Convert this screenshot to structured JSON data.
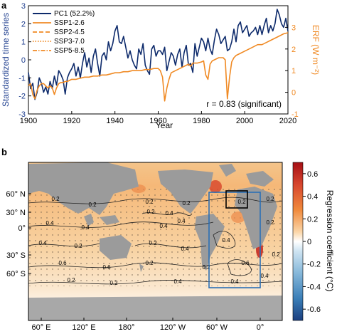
{
  "chart_data": [
    {
      "type": "line",
      "panel_label": "a",
      "xlabel": "Year",
      "ylabel_left": "Standardized time series",
      "ylabel_right": "ERF (W m⁻²)",
      "xlim": [
        1900,
        2020
      ],
      "ylim_left": [
        -3,
        3
      ],
      "ylim_right": [
        -1,
        4
      ],
      "x_ticks": [
        "1900",
        "1920",
        "1940",
        "1960",
        "1980",
        "2000",
        "2020"
      ],
      "y_ticks_left": [
        "3",
        "2",
        "1",
        "0",
        "-1",
        "-2",
        "-3"
      ],
      "y_ticks_right": [
        "3",
        "2",
        "1",
        "0",
        "-1"
      ],
      "legend": [
        "PC1 (52.2%)",
        "SSP1-2.6",
        "SSP2-4.5",
        "SSP3-7.0",
        "SSP5-8.5"
      ],
      "legend_position": "top-left",
      "annotation": "r = 0.83 (significant)",
      "colors": {
        "pc1": "#0d2a6b",
        "erf": "#f08a24",
        "right_axis": "#f08a24",
        "left_axis": "#1f3f8f"
      },
      "series": [
        {
          "name": "PC1 (52.2%)",
          "axis": "left",
          "x": [
            1900,
            1901,
            1902,
            1903,
            1904,
            1905,
            1906,
            1907,
            1908,
            1909,
            1910,
            1911,
            1912,
            1913,
            1914,
            1915,
            1916,
            1917,
            1918,
            1919,
            1920,
            1921,
            1922,
            1923,
            1924,
            1925,
            1926,
            1927,
            1928,
            1929,
            1930,
            1931,
            1932,
            1933,
            1934,
            1935,
            1936,
            1937,
            1938,
            1939,
            1940,
            1941,
            1942,
            1943,
            1944,
            1945,
            1946,
            1947,
            1948,
            1949,
            1950,
            1951,
            1952,
            1953,
            1954,
            1955,
            1956,
            1957,
            1958,
            1959,
            1960,
            1961,
            1962,
            1963,
            1964,
            1965,
            1966,
            1967,
            1968,
            1969,
            1970,
            1971,
            1972,
            1973,
            1974,
            1975,
            1976,
            1977,
            1978,
            1979,
            1980,
            1981,
            1982,
            1983,
            1984,
            1985,
            1986,
            1987,
            1988,
            1989,
            1990,
            1991,
            1992,
            1993,
            1994,
            1995,
            1996,
            1997,
            1998,
            1999,
            2000,
            2001,
            2002,
            2003,
            2004,
            2005,
            2006,
            2007,
            2008,
            2009,
            2010,
            2011,
            2012,
            2013,
            2014,
            2015,
            2016,
            2017,
            2018,
            2019,
            2020
          ],
          "y": [
            -0.7,
            -1.6,
            -1.3,
            -2.2,
            -1.8,
            -1.0,
            -1.3,
            -1.8,
            -1.5,
            -1.9,
            -1.2,
            -1.6,
            -0.9,
            -1.4,
            -0.6,
            -0.8,
            -1.1,
            -1.9,
            -1.0,
            -0.7,
            -0.5,
            -0.2,
            -0.9,
            -0.4,
            -1.0,
            -0.2,
            0.4,
            -0.4,
            0.1,
            -0.7,
            0.2,
            0.6,
            -0.2,
            -0.9,
            0.2,
            0.4,
            0.0,
            1.0,
            0.5,
            0.9,
            1.6,
            1.9,
            1.0,
            0.9,
            1.3,
            0.7,
            0.1,
            0.5,
            0.0,
            -0.3,
            -0.5,
            0.6,
            0.3,
            0.9,
            -0.3,
            -0.6,
            -0.8,
            0.6,
            0.8,
            0.2,
            0.5,
            0.5,
            0.3,
            0.7,
            -0.6,
            -0.1,
            0.4,
            0.2,
            -0.3,
            0.3,
            0.6,
            -0.4,
            0.4,
            0.8,
            -0.3,
            -0.2,
            -0.7,
            0.9,
            0.2,
            0.7,
            1.2,
            1.0,
            0.5,
            1.2,
            0.6,
            0.3,
            1.1,
            1.7,
            1.4,
            0.9,
            1.1,
            1.3,
            0.5,
            0.6,
            1.0,
            1.7,
            1.0,
            1.9,
            2.1,
            1.5,
            1.7,
            1.9,
            1.3,
            1.5,
            1.6,
            1.8,
            1.4,
            1.9,
            1.4,
            1.9,
            2.3,
            1.5,
            1.9,
            1.6,
            2.0,
            2.8,
            2.5,
            2.0,
            1.8,
            2.3,
            1.6
          ]
        },
        {
          "name": "SSP1-2.6",
          "axis": "right",
          "x": [
            1900,
            1901,
            1902,
            1903,
            1904,
            1905,
            1906,
            1907,
            1908,
            1909,
            1910,
            1911,
            1912,
            1913,
            1914,
            1915,
            1916,
            1917,
            1918,
            1919,
            1920,
            1922,
            1924,
            1926,
            1928,
            1930,
            1932,
            1934,
            1936,
            1938,
            1940,
            1942,
            1944,
            1946,
            1948,
            1950,
            1952,
            1954,
            1956,
            1958,
            1960,
            1961,
            1962,
            1963,
            1964,
            1965,
            1966,
            1968,
            1970,
            1972,
            1974,
            1975,
            1976,
            1978,
            1980,
            1981,
            1982,
            1983,
            1984,
            1985,
            1986,
            1988,
            1990,
            1991,
            1992,
            1993,
            1994,
            1995,
            1996,
            1998,
            2000,
            2002,
            2004,
            2005,
            2006,
            2008,
            2010,
            2012,
            2014,
            2016,
            2018,
            2020
          ],
          "y": [
            0.3,
            0.4,
            -0.1,
            -0.3,
            0.1,
            0.3,
            0.4,
            0.4,
            0.3,
            0.2,
            0.3,
            0.2,
            -0.1,
            0.2,
            0.4,
            0.45,
            0.45,
            0.5,
            0.5,
            0.55,
            0.6,
            0.6,
            0.65,
            0.7,
            0.7,
            0.75,
            0.75,
            0.8,
            0.8,
            0.85,
            0.9,
            0.9,
            0.95,
            0.95,
            1.0,
            1.0,
            1.0,
            1.05,
            1.05,
            1.1,
            1.1,
            1.0,
            0.7,
            -0.4,
            0.2,
            0.6,
            0.9,
            1.0,
            1.1,
            1.2,
            1.3,
            1.2,
            1.35,
            1.35,
            1.4,
            1.45,
            0.8,
            0.6,
            1.3,
            1.45,
            1.5,
            1.6,
            1.6,
            1.5,
            -0.3,
            0.7,
            1.4,
            1.6,
            1.7,
            1.8,
            1.9,
            2.0,
            2.1,
            2.15,
            2.2,
            2.2,
            2.3,
            2.4,
            2.5,
            2.6,
            2.7,
            2.75
          ]
        }
      ]
    },
    {
      "type": "heatmap",
      "panel_label": "b",
      "colorbar_label": "Regression coefficient (°C)",
      "colorbar_ticks": [
        "0.6",
        "0.4",
        "0.2",
        "0",
        "-0.2",
        "-0.4",
        "-0.6"
      ],
      "clim": [
        -0.7,
        0.7
      ],
      "x_ticks": [
        "60° E",
        "120° E",
        "180°",
        "120° W",
        "60° W",
        "0°"
      ],
      "y_ticks": [
        "60° N",
        "30° N",
        "0°",
        "30° S",
        "60° S"
      ],
      "contour_labels": [
        "0.2",
        "0.2",
        "0.2",
        "0.2",
        "0.2",
        "0.2",
        "0.4",
        "0.4",
        "0.4",
        "0.4",
        "0.4",
        "0.2",
        "0.2",
        "0.4",
        "0.6",
        "0.6",
        "0.2",
        "0.2",
        "0.4",
        "0.4",
        "0.2",
        "0.2",
        "0.4",
        "0.6",
        "0.2",
        "0.4",
        "0.2",
        "0.4",
        "0.2"
      ],
      "boxes": [
        {
          "name": "blue-box",
          "lon": [
            -80,
            0
          ],
          "lat": [
            -35,
            65
          ],
          "color": "#2b6fb5"
        },
        {
          "name": "black-box",
          "lon": [
            -55,
            -20
          ],
          "lat": [
            45,
            63
          ],
          "color": "#000000"
        }
      ]
    }
  ]
}
